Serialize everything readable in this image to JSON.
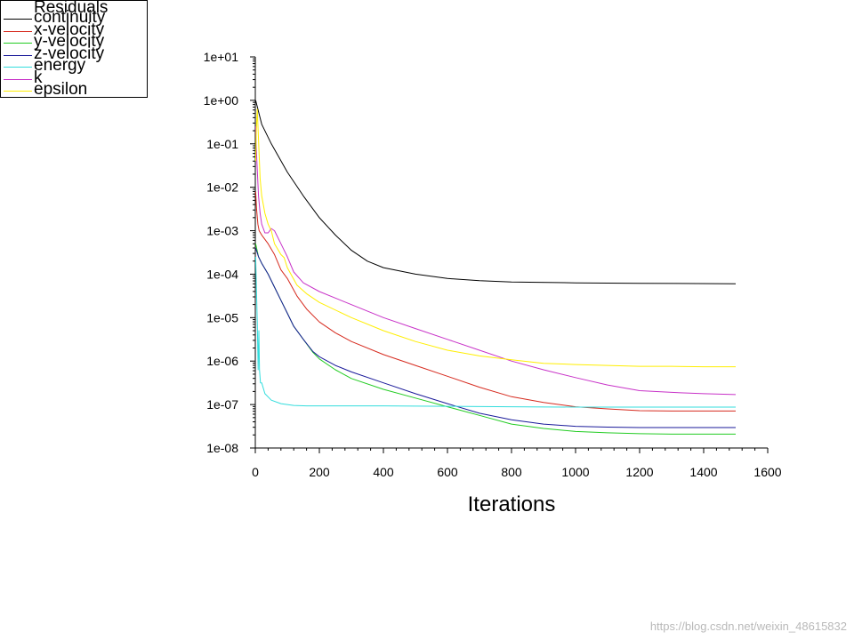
{
  "chart_data": {
    "type": "line",
    "title": "",
    "xlabel": "Iterations",
    "ylabel": "",
    "yscale": "log",
    "xlim": [
      0,
      1600
    ],
    "ylim_exp": [
      -8,
      1
    ],
    "xticks": [
      0,
      200,
      400,
      600,
      800,
      1000,
      1200,
      1400,
      1600
    ],
    "yticks": [
      "1e+01",
      "1e+00",
      "1e-01",
      "1e-02",
      "1e-03",
      "1e-04",
      "1e-05",
      "1e-06",
      "1e-07",
      "1e-08"
    ],
    "legend_title": "Residuals",
    "legend_position": "top-left",
    "series": [
      {
        "name": "continuity",
        "color": "#000000",
        "x": [
          1,
          20,
          50,
          100,
          150,
          200,
          250,
          300,
          350,
          400,
          500,
          600,
          700,
          800,
          1000,
          1200,
          1500
        ],
        "log10": [
          0,
          -0.55,
          -1.0,
          -1.65,
          -2.2,
          -2.7,
          -3.1,
          -3.45,
          -3.7,
          -3.85,
          -4.0,
          -4.1,
          -4.15,
          -4.18,
          -4.2,
          -4.21,
          -4.22
        ]
      },
      {
        "name": "x-velocity",
        "color": "#d62a1e",
        "x": [
          1,
          4,
          8,
          12,
          20,
          40,
          60,
          80,
          100,
          130,
          160,
          200,
          250,
          300,
          400,
          500,
          600,
          700,
          800,
          900,
          1000,
          1100,
          1200,
          1300,
          1400,
          1500
        ],
        "log10": [
          -2.1,
          -2.5,
          -2.85,
          -3.0,
          -3.1,
          -3.3,
          -3.55,
          -3.9,
          -4.1,
          -4.5,
          -4.8,
          -5.1,
          -5.35,
          -5.55,
          -5.85,
          -6.1,
          -6.35,
          -6.6,
          -6.82,
          -6.95,
          -7.05,
          -7.1,
          -7.14,
          -7.15,
          -7.15,
          -7.15
        ]
      },
      {
        "name": "y-velocity",
        "color": "#22cc22",
        "x": [
          1,
          10,
          20,
          40,
          60,
          80,
          100,
          120,
          150,
          180,
          200,
          250,
          300,
          400,
          500,
          600,
          700,
          800,
          900,
          1000,
          1100,
          1200,
          1300,
          1400,
          1500
        ],
        "log10": [
          -3.3,
          -3.6,
          -3.75,
          -4.0,
          -4.3,
          -4.6,
          -4.9,
          -5.2,
          -5.5,
          -5.8,
          -5.95,
          -6.2,
          -6.4,
          -6.65,
          -6.85,
          -7.05,
          -7.25,
          -7.45,
          -7.55,
          -7.62,
          -7.65,
          -7.67,
          -7.68,
          -7.68,
          -7.68
        ]
      },
      {
        "name": "z-velocity",
        "color": "#1a1a9a",
        "x": [
          1,
          10,
          20,
          40,
          60,
          80,
          100,
          120,
          150,
          180,
          200,
          250,
          300,
          400,
          500,
          600,
          700,
          800,
          900,
          1000,
          1100,
          1200,
          1300,
          1400,
          1500
        ],
        "log10": [
          -3.4,
          -3.6,
          -3.75,
          -4.0,
          -4.3,
          -4.6,
          -4.9,
          -5.2,
          -5.5,
          -5.78,
          -5.9,
          -6.1,
          -6.25,
          -6.5,
          -6.75,
          -6.98,
          -7.2,
          -7.35,
          -7.45,
          -7.5,
          -7.52,
          -7.53,
          -7.53,
          -7.53,
          -7.53
        ]
      },
      {
        "name": "energy",
        "color": "#33dddd",
        "x": [
          1,
          6,
          9,
          11,
          13,
          16,
          20,
          30,
          50,
          80,
          120,
          160,
          200,
          400,
          600,
          800,
          1000,
          1200,
          1500
        ],
        "log10": [
          -3.6,
          -5.1,
          -6.2,
          -5.3,
          -6.2,
          -6.5,
          -6.5,
          -6.75,
          -6.9,
          -6.98,
          -7.02,
          -7.03,
          -7.03,
          -7.03,
          -7.04,
          -7.05,
          -7.06,
          -7.06,
          -7.06
        ]
      },
      {
        "name": "k",
        "color": "#c832c8",
        "x": [
          1,
          3,
          6,
          10,
          15,
          20,
          30,
          40,
          50,
          60,
          80,
          100,
          120,
          150,
          200,
          300,
          400,
          500,
          600,
          700,
          800,
          900,
          1000,
          1100,
          1200,
          1300,
          1400,
          1500
        ],
        "log10": [
          -0.6,
          -1.1,
          -1.6,
          -2.2,
          -2.6,
          -2.85,
          -3.05,
          -3.05,
          -2.95,
          -3.0,
          -3.3,
          -3.6,
          -3.95,
          -4.2,
          -4.4,
          -4.7,
          -5.0,
          -5.25,
          -5.5,
          -5.75,
          -6.0,
          -6.2,
          -6.38,
          -6.55,
          -6.68,
          -6.72,
          -6.75,
          -6.77
        ]
      },
      {
        "name": "epsilon",
        "color": "#ffee00",
        "x": [
          1,
          3,
          6,
          10,
          15,
          20,
          30,
          40,
          50,
          60,
          80,
          90,
          100,
          130,
          160,
          200,
          300,
          400,
          500,
          600,
          700,
          800,
          900,
          1000,
          1100,
          1200,
          1300,
          1400,
          1500
        ],
        "log10": [
          -1.4,
          -0.7,
          -0.2,
          -0.9,
          -1.8,
          -2.2,
          -2.6,
          -2.85,
          -3.0,
          -3.3,
          -3.55,
          -3.62,
          -3.85,
          -4.25,
          -4.45,
          -4.65,
          -5.0,
          -5.3,
          -5.55,
          -5.75,
          -5.88,
          -5.97,
          -6.05,
          -6.08,
          -6.1,
          -6.12,
          -6.12,
          -6.13,
          -6.13
        ]
      }
    ]
  },
  "watermark": "https://blog.csdn.net/weixin_48615832"
}
